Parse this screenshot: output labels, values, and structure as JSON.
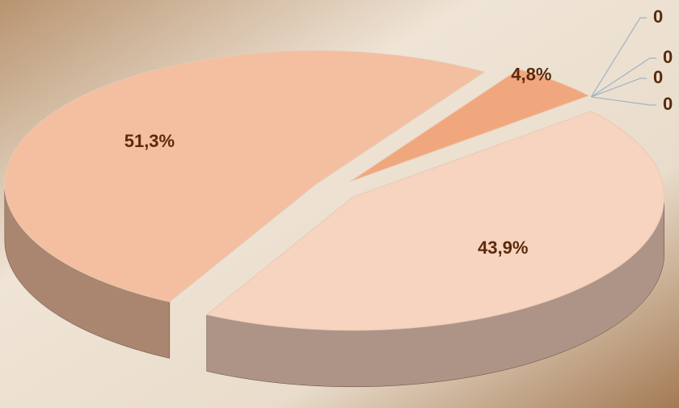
{
  "chart_data": {
    "type": "pie",
    "values": [
      43.9,
      51.3,
      4.8,
      0,
      0,
      0,
      0
    ],
    "value_labels": [
      "43,9%",
      "51,3%",
      "4,8%",
      "0",
      "0",
      "0",
      "0"
    ],
    "colors": [
      "#f7d4c0",
      "#f3bfa0",
      "#f1a77d",
      "#6b3a1a",
      "#6b3a1a",
      "#6b3a1a",
      "#6b3a1a"
    ]
  }
}
